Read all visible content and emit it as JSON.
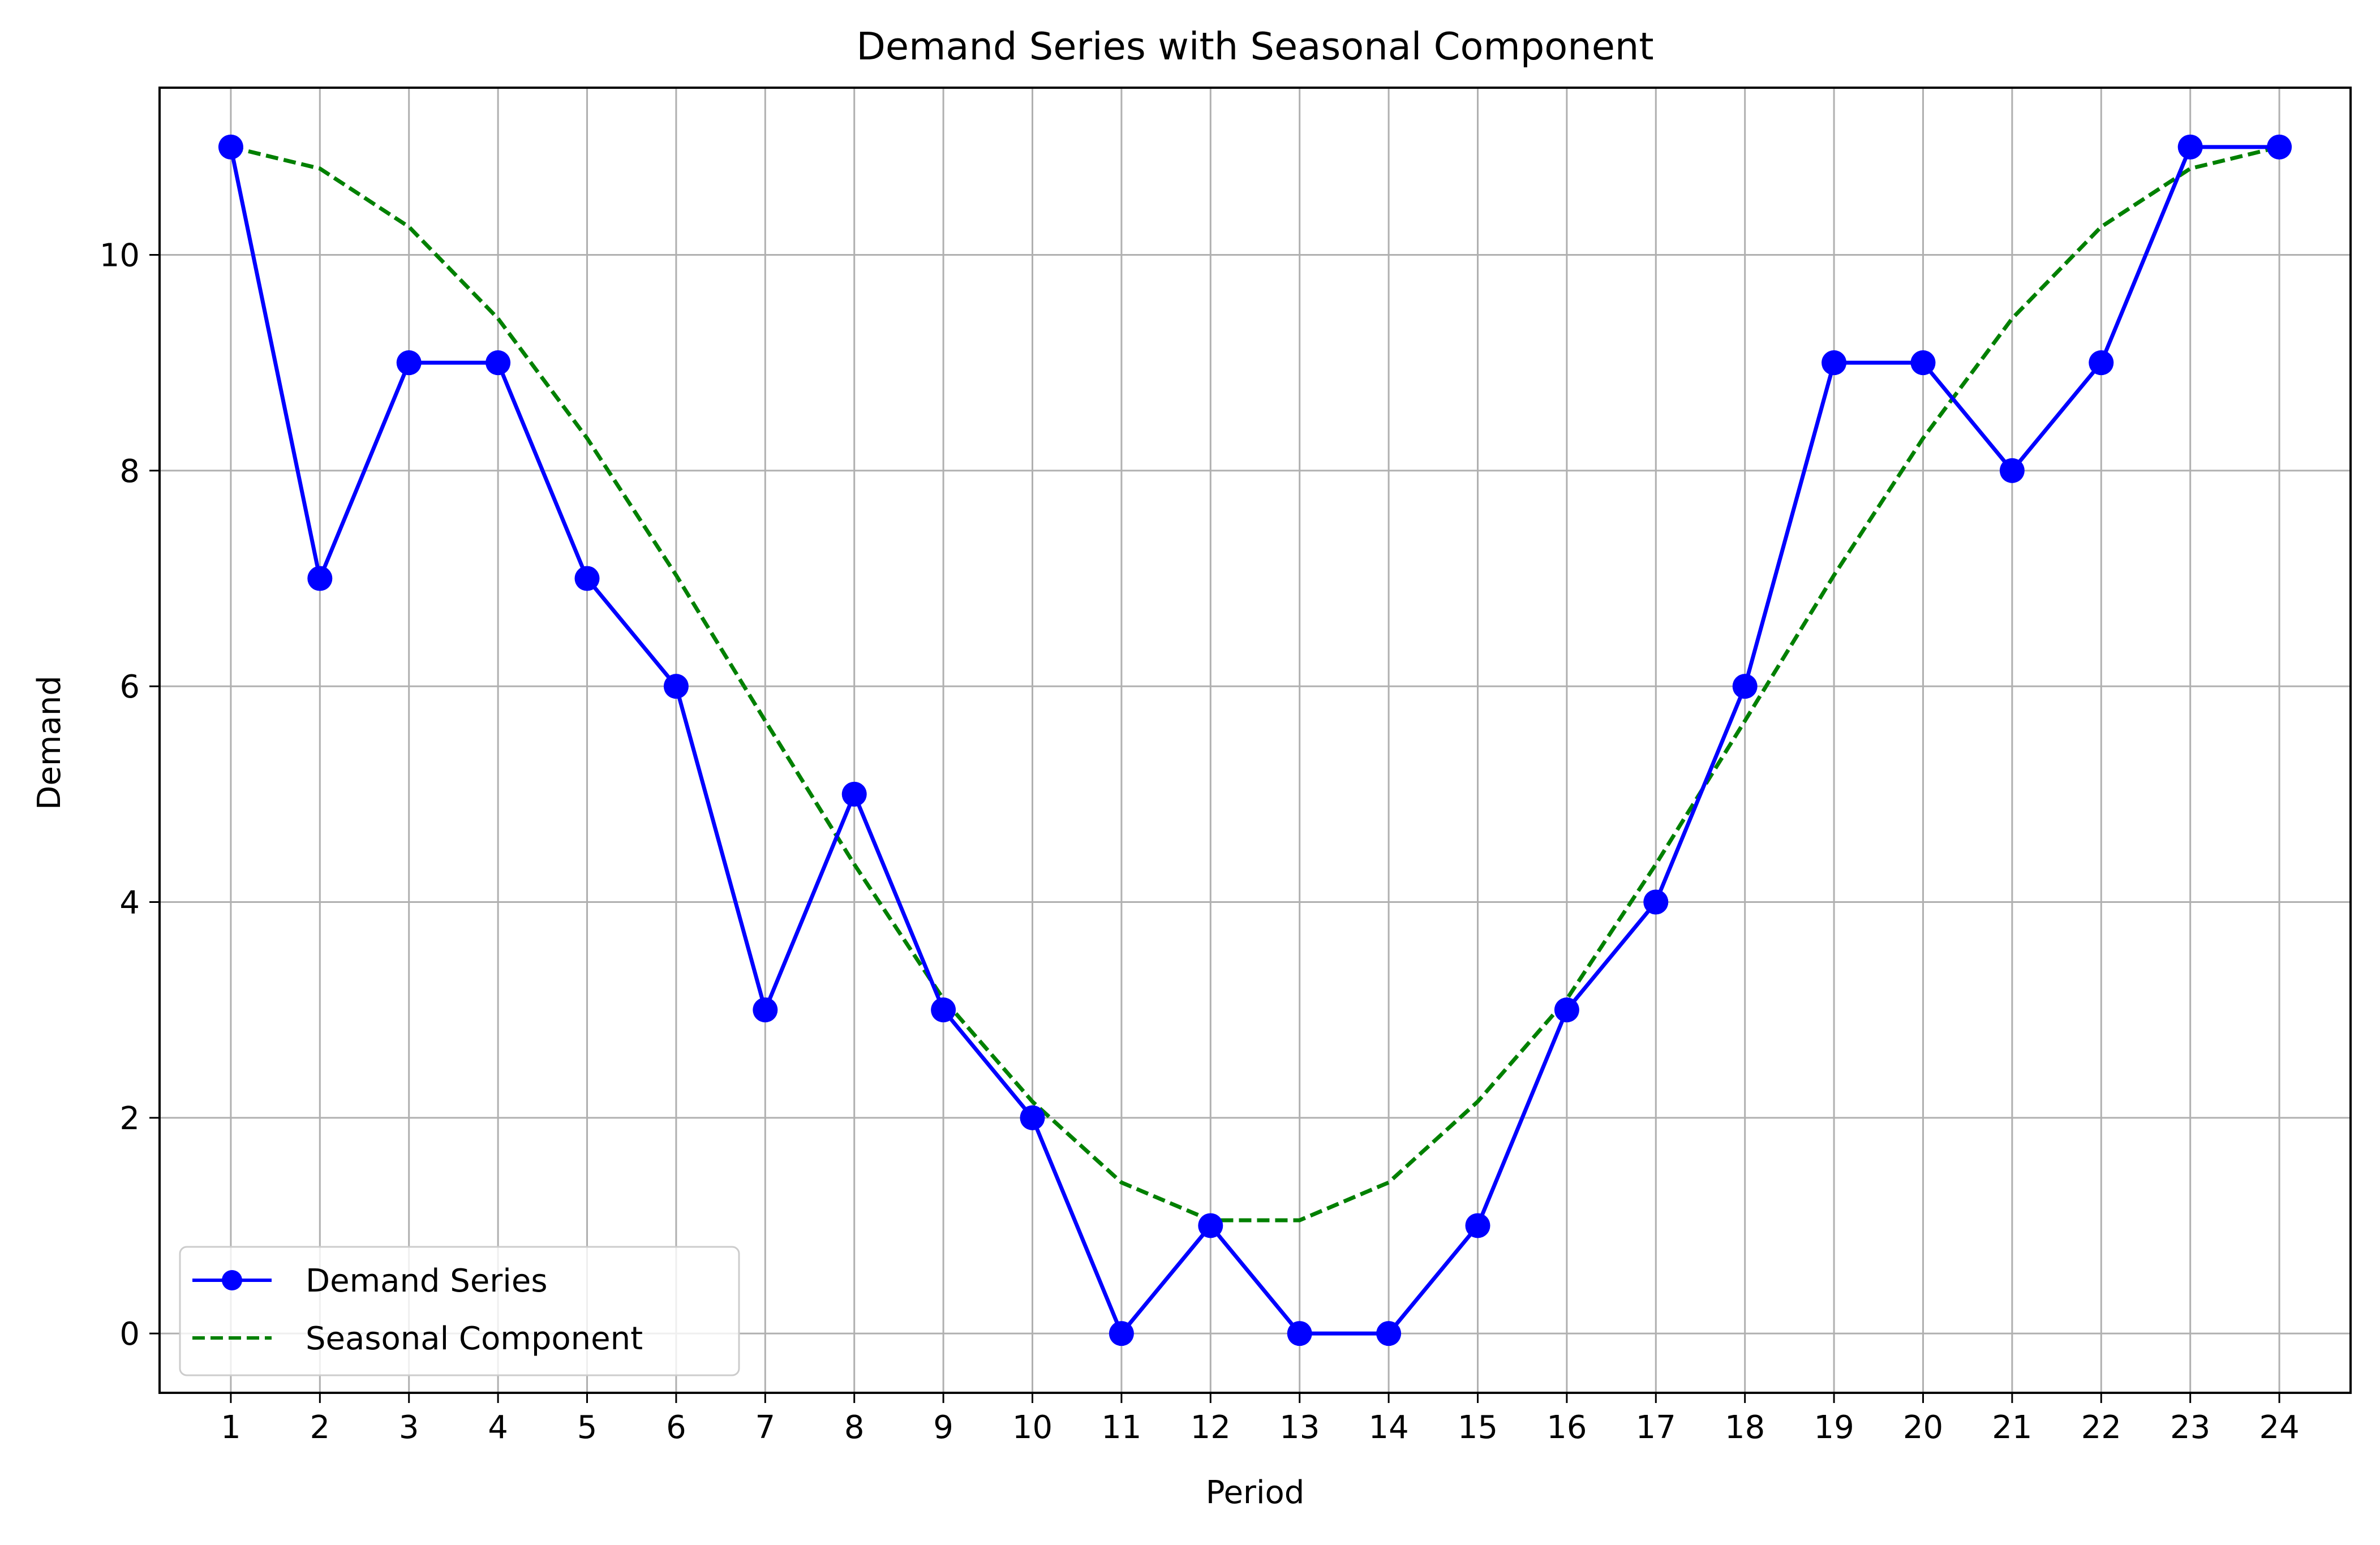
{
  "chart_data": {
    "type": "line",
    "title": "Demand Series with Seasonal Component",
    "xlabel": "Period",
    "ylabel": "Demand",
    "x": [
      1,
      2,
      3,
      4,
      5,
      6,
      7,
      8,
      9,
      10,
      11,
      12,
      13,
      14,
      15,
      16,
      17,
      18,
      19,
      20,
      21,
      22,
      23,
      24
    ],
    "xlim": [
      0.2,
      24.8
    ],
    "ylim": [
      -0.55,
      11.55
    ],
    "xticks": [
      1,
      2,
      3,
      4,
      5,
      6,
      7,
      8,
      9,
      10,
      11,
      12,
      13,
      14,
      15,
      16,
      17,
      18,
      19,
      20,
      21,
      22,
      23,
      24
    ],
    "yticks": [
      0,
      2,
      4,
      6,
      8,
      10
    ],
    "grid": true,
    "legend_position": "lower-left",
    "series": [
      {
        "name": "Demand Series",
        "style": "solid line with circle markers",
        "color": "#0000ff",
        "values": [
          11,
          7,
          9,
          9,
          7,
          6,
          3,
          5,
          3,
          2,
          0,
          1,
          0,
          0,
          1,
          3,
          4,
          6,
          9,
          9,
          8,
          9,
          11,
          11
        ]
      },
      {
        "name": "Seasonal Component",
        "style": "dashed line",
        "color": "#008000",
        "values": [
          11.0,
          10.8,
          10.26,
          9.41,
          8.3,
          7.03,
          5.68,
          4.35,
          3.1,
          2.15,
          1.4,
          1.05,
          1.05,
          1.4,
          2.15,
          3.1,
          4.35,
          5.68,
          7.03,
          8.3,
          9.41,
          10.26,
          10.8,
          11.0
        ]
      }
    ]
  }
}
